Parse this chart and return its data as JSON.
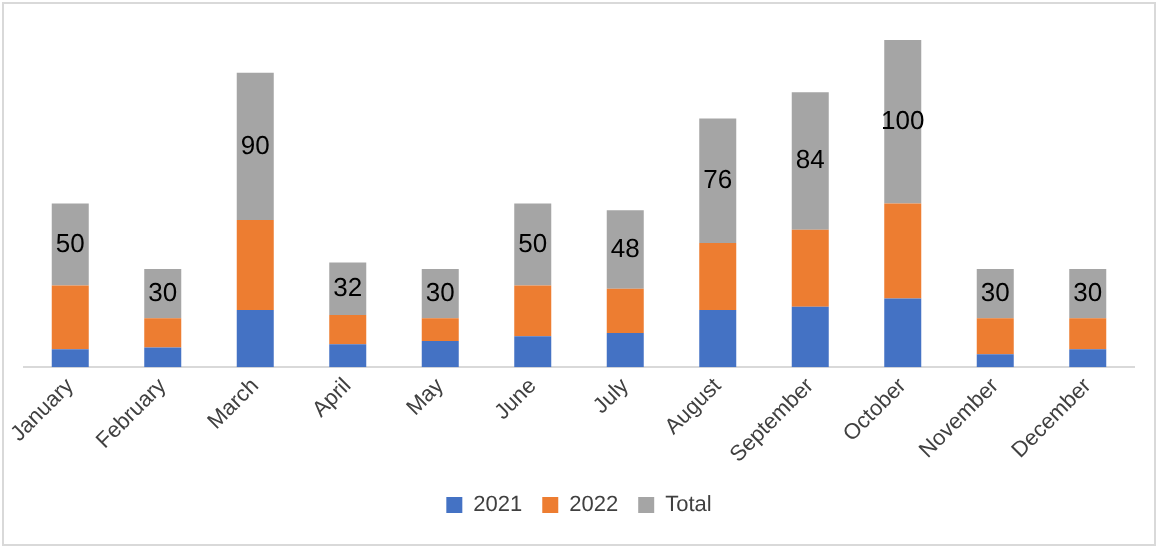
{
  "chart_data": {
    "type": "bar",
    "stacked": true,
    "legend": "bottom",
    "grid": false,
    "categories": [
      "January",
      "February",
      "March",
      "April",
      "May",
      "June",
      "July",
      "August",
      "September",
      "October",
      "November",
      "December"
    ],
    "series": [
      {
        "name": "2021",
        "color": "#4472c4",
        "values": [
          11,
          12,
          35,
          14,
          16,
          19,
          21,
          35,
          37,
          42,
          8,
          11
        ]
      },
      {
        "name": "2022",
        "color": "#ed7d31",
        "values": [
          39,
          18,
          55,
          18,
          14,
          31,
          27,
          41,
          47,
          58,
          22,
          19
        ]
      },
      {
        "name": "Total",
        "color": "#a5a5a5",
        "values": [
          50,
          30,
          90,
          32,
          30,
          50,
          48,
          76,
          84,
          100,
          30,
          30
        ],
        "value_labels": [
          "50",
          "30",
          "90",
          "32",
          "30",
          "50",
          "48",
          "76",
          "84",
          "100",
          "30",
          "30"
        ]
      }
    ]
  }
}
